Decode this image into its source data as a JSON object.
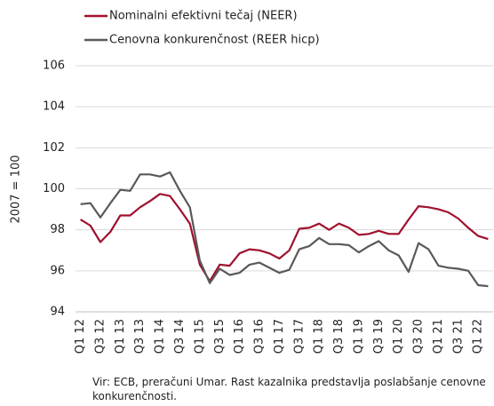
{
  "chart_data": {
    "type": "line",
    "y_label": "2007 = 100",
    "source": "Vir: ECB, preračuni Umar. Rast kazalnika predstavlja poslabšanje cenovne konkurenčnosti.",
    "categories": [
      "Q1 12",
      null,
      "Q3 12",
      null,
      "Q1 13",
      null,
      "Q3 13",
      null,
      "Q1 14",
      null,
      "Q3 14",
      null,
      "Q1 15",
      null,
      "Q3 15",
      null,
      "Q1 16",
      null,
      "Q3 16",
      null,
      "Q1 17",
      null,
      "Q3 17",
      null,
      "Q1 18",
      null,
      "Q3 18",
      null,
      "Q1 19",
      null,
      "Q3 19",
      null,
      "Q1 20",
      null,
      "Q3 20",
      null,
      "Q1 21",
      null,
      "Q3 21",
      null,
      "Q1 22",
      null
    ],
    "series": [
      {
        "name": "Nominalni efektivni tečaj (NEER)",
        "color": "#a0102e",
        "values": [
          98.5,
          98.2,
          97.4,
          97.9,
          98.7,
          98.7,
          99.1,
          99.4,
          99.75,
          99.65,
          99.0,
          98.3,
          96.3,
          95.5,
          96.3,
          96.25,
          96.85,
          97.05,
          97.0,
          96.85,
          96.6,
          97.0,
          98.05,
          98.1,
          98.3,
          98.0,
          98.3,
          98.1,
          97.75,
          97.8,
          97.95,
          97.8,
          97.8,
          98.5,
          99.15,
          99.1,
          99.0,
          98.85,
          98.55,
          98.1,
          97.7,
          97.55
        ]
      },
      {
        "name": "Cenovna konkurenčnost (REER hicp)",
        "color": "#595959",
        "values": [
          99.25,
          99.3,
          98.6,
          99.3,
          99.95,
          99.9,
          100.7,
          100.7,
          100.6,
          100.8,
          99.9,
          99.1,
          96.5,
          95.4,
          96.1,
          95.8,
          95.9,
          96.3,
          96.4,
          96.15,
          95.9,
          96.05,
          97.05,
          97.2,
          97.6,
          97.3,
          97.3,
          97.25,
          96.9,
          97.2,
          97.45,
          97.0,
          96.75,
          95.95,
          97.35,
          97.05,
          96.25,
          96.15,
          96.1,
          96.0,
          95.3,
          95.25
        ]
      }
    ],
    "ylim": [
      94,
      106
    ],
    "yticks": [
      94,
      96,
      98,
      100,
      102,
      104,
      106
    ],
    "grid": true
  }
}
